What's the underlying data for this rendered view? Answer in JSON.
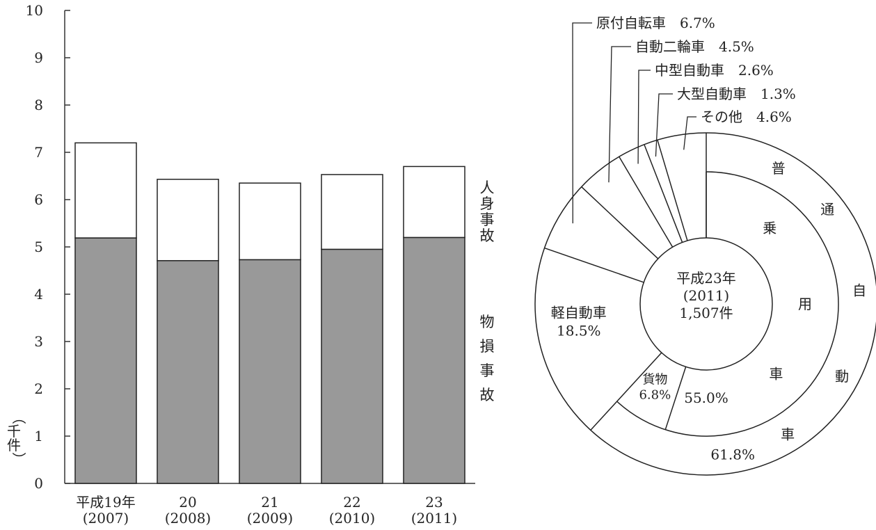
{
  "chart_data": [
    {
      "type": "bar",
      "stacked": true,
      "ylabel": "（千件）",
      "ylim": [
        0,
        10
      ],
      "yticks": [
        "0",
        "1",
        "2",
        "3",
        "4",
        "5",
        "6",
        "7",
        "8",
        "9",
        "10"
      ],
      "categories": [
        [
          "平成19年",
          "(2007)"
        ],
        [
          "20",
          "(2008)"
        ],
        [
          "21",
          "(2009)"
        ],
        [
          "22",
          "(2010)"
        ],
        [
          "23",
          "(2011)"
        ]
      ],
      "series": [
        {
          "name": "物損事故",
          "color": "#999999",
          "values": [
            5.19,
            4.71,
            4.73,
            4.95,
            5.2
          ]
        },
        {
          "name": "人身事故",
          "color": "#ffffff",
          "values": [
            2.01,
            1.72,
            1.62,
            1.58,
            1.5
          ]
        }
      ],
      "totals": [
        7.2,
        6.43,
        6.35,
        6.53,
        6.7
      ],
      "grid": false,
      "legend": "right"
    },
    {
      "type": "pie",
      "center_text": [
        "平成23年",
        "(2011)",
        "1,507件"
      ],
      "outer": [
        {
          "label": "普通自動車",
          "value": 61.8,
          "value_text": "61.8%"
        },
        {
          "label": "軽自動車",
          "value": 18.5,
          "value_text": "18.5%"
        },
        {
          "label": "原付自転車",
          "value": 6.7,
          "value_text": "6.7%"
        },
        {
          "label": "自動二輪車",
          "value": 4.5,
          "value_text": "4.5%"
        },
        {
          "label": "中型自動車",
          "value": 2.6,
          "value_text": "2.6%"
        },
        {
          "label": "大型自動車",
          "value": 1.3,
          "value_text": "1.3%"
        },
        {
          "label": "その他",
          "value": 4.6,
          "value_text": "4.6%"
        }
      ],
      "inner": [
        {
          "label": "乗用車",
          "value": 55.0,
          "value_text": "55.0%"
        },
        {
          "label": "貨物",
          "value": 6.8,
          "value_text": "6.8%"
        }
      ],
      "callout_labels": [
        "原付自転車　6.7%",
        "自動二輪車　4.5%",
        "中型自動車　2.6%",
        "大型自動車　1.3%",
        "その他　4.6%"
      ]
    }
  ]
}
